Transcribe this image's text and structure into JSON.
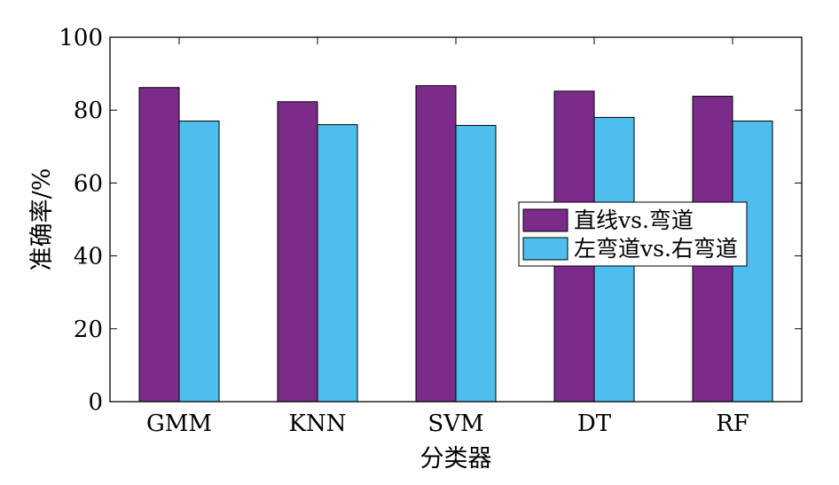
{
  "chart_data": {
    "type": "bar",
    "title": "",
    "xlabel": "分类器",
    "ylabel": "准确率/%",
    "ylim": [
      0,
      100
    ],
    "yticks": [
      0,
      20,
      40,
      60,
      80,
      100
    ],
    "categories": [
      "GMM",
      "KNN",
      "SVM",
      "DT",
      "RF"
    ],
    "series": [
      {
        "name": "直线vs.弯道",
        "color": "#7B2C8A",
        "values": [
          86.2,
          82.3,
          86.7,
          85.2,
          83.8
        ]
      },
      {
        "name": "左弯道vs.右弯道",
        "color": "#4DBEEE",
        "values": [
          77.0,
          76.0,
          75.8,
          78.0,
          77.0
        ]
      }
    ],
    "legend_position": "center-right",
    "grid": false
  }
}
